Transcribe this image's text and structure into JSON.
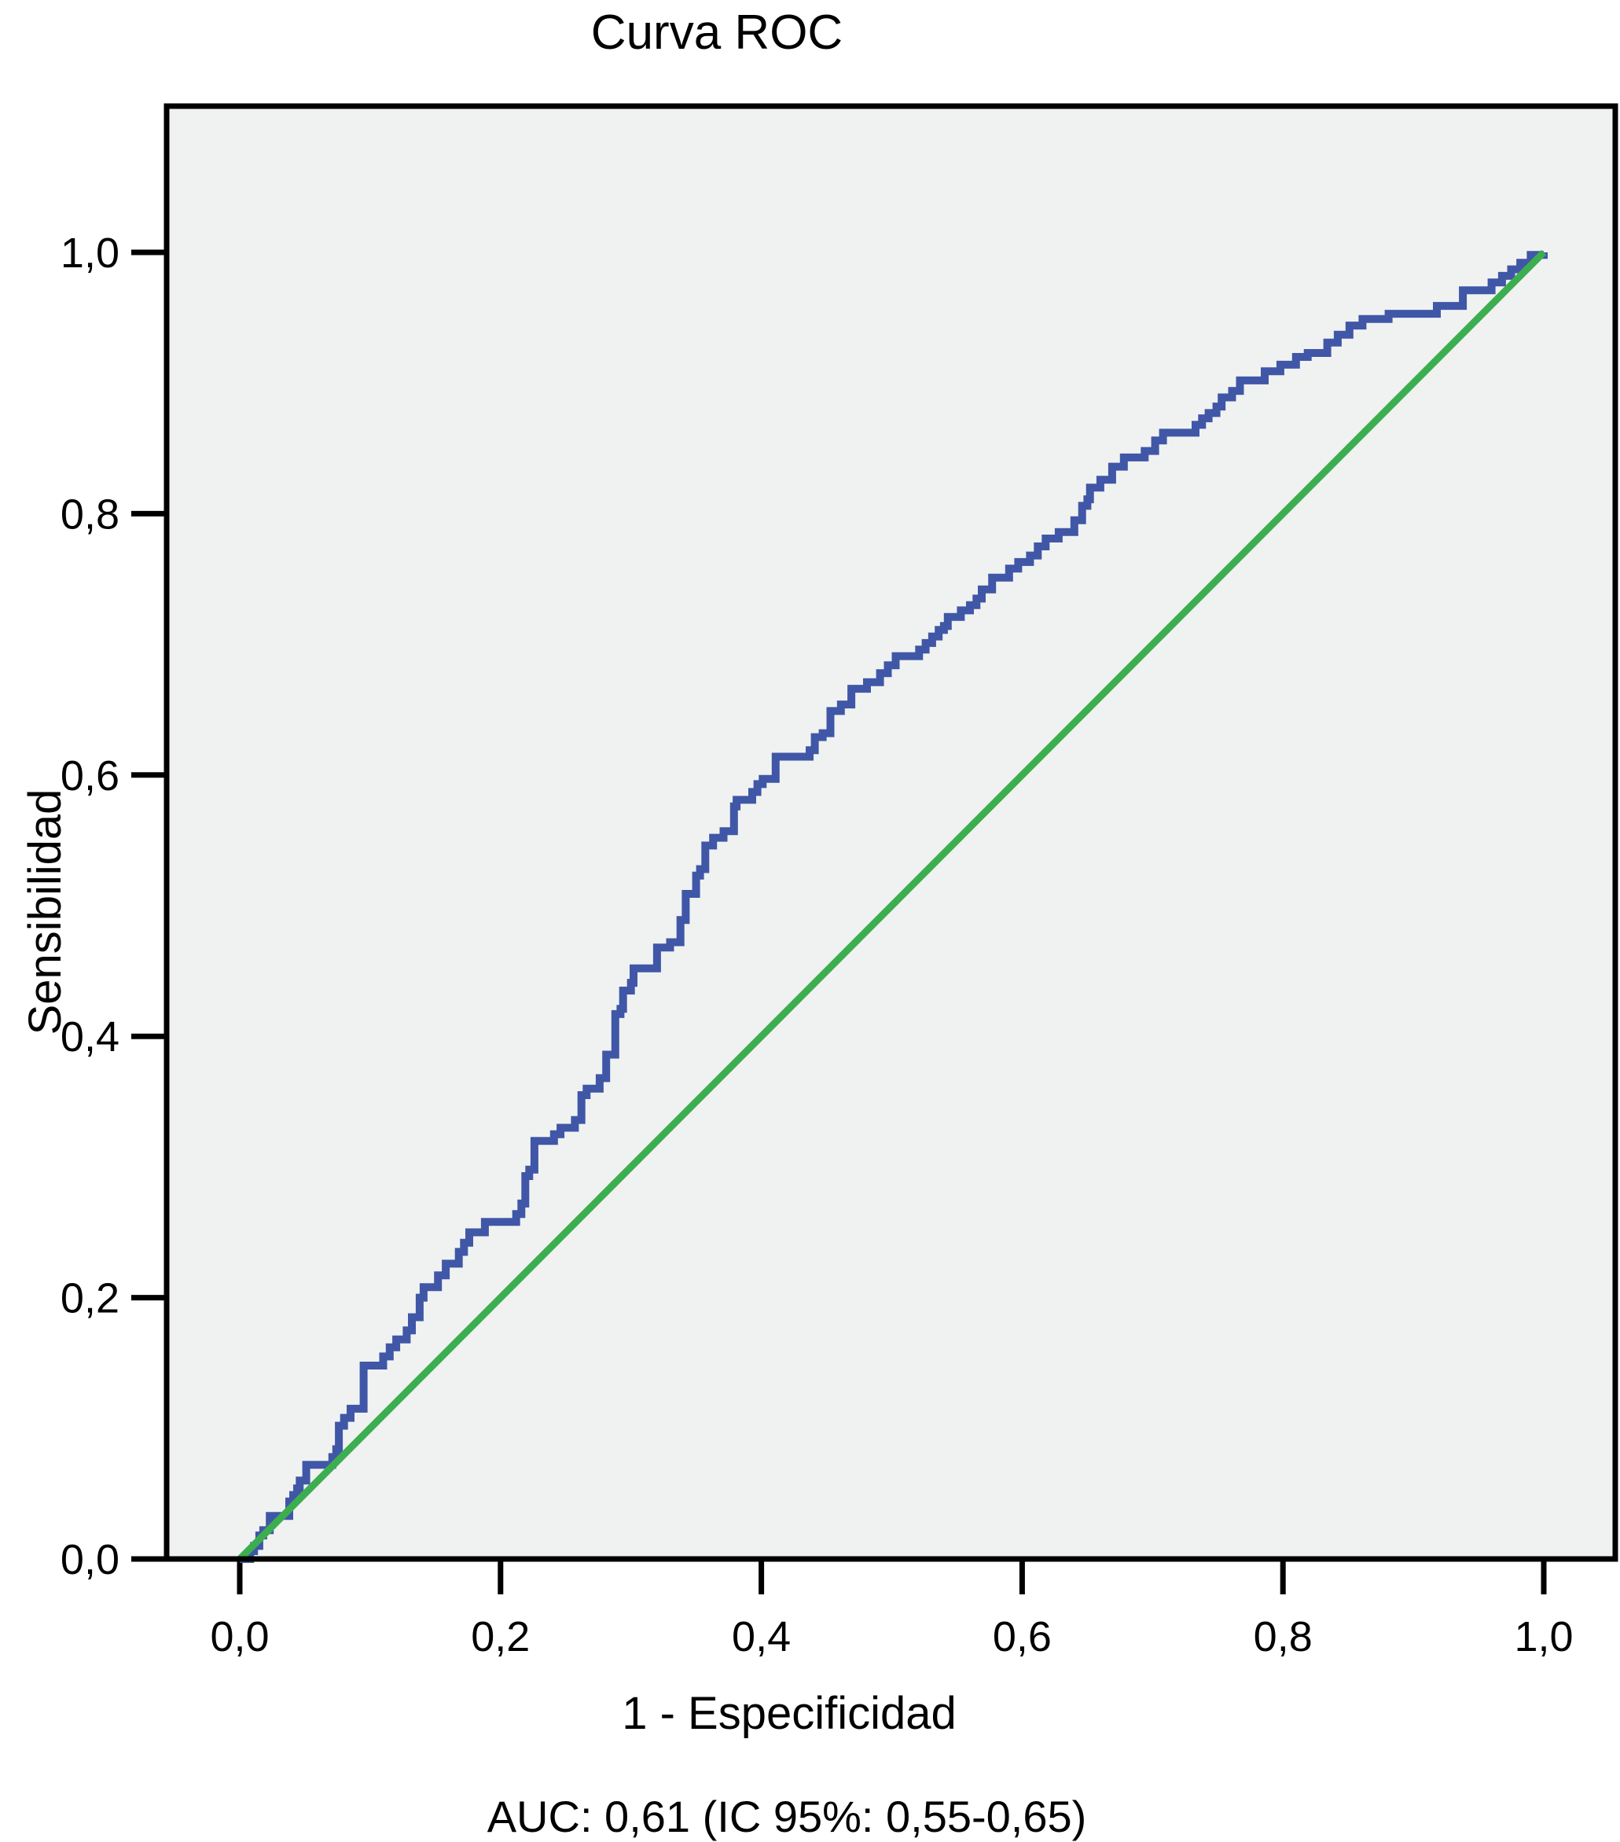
{
  "chart": {
    "title": "Curva ROC",
    "ylabel": "Sensibilidad",
    "xlabel": "1 - Especificidad",
    "caption": "AUC: 0,61 (IC 95%: 0,55-0,65)"
  },
  "chart_data": {
    "type": "line",
    "subtype": "roc-step-curve",
    "title": "Curva ROC",
    "xlabel": "1 - Especificidad",
    "ylabel": "Sensibilidad",
    "caption": "AUC: 0,61 (IC 95%: 0,55-0,65)",
    "auc": "0,61",
    "ci_95": "0,55-0,65",
    "xlim": [
      0,
      1
    ],
    "ylim": [
      0,
      1
    ],
    "grid": false,
    "legend_position": "none",
    "x_tick_values": [
      0,
      0.2,
      0.4,
      0.6,
      0.8,
      1
    ],
    "x_tick_labels": [
      "0,0",
      "0,2",
      "0,4",
      "0,6",
      "0,8",
      "1,0"
    ],
    "y_tick_values": [
      0,
      0.2,
      0.4,
      0.6,
      0.8,
      1
    ],
    "y_tick_labels": [
      "0,0",
      "0,2",
      "0,4",
      "0,6",
      "0,8",
      "1,0"
    ],
    "colors": {
      "curve": "#4057a7",
      "reference": "#3dae4f",
      "plot_background": "#f0f2f1",
      "frame": "#000000"
    },
    "series": [
      {
        "name": "roc_curve",
        "style": "step",
        "color_key": "curve",
        "points": [
          [
            0.0,
            0.0
          ],
          [
            0.008,
            0.006
          ],
          [
            0.011,
            0.01
          ],
          [
            0.015,
            0.018
          ],
          [
            0.018,
            0.022
          ],
          [
            0.023,
            0.033
          ],
          [
            0.038,
            0.044
          ],
          [
            0.041,
            0.049
          ],
          [
            0.044,
            0.054
          ],
          [
            0.046,
            0.06
          ],
          [
            0.051,
            0.072
          ],
          [
            0.071,
            0.078
          ],
          [
            0.074,
            0.084
          ],
          [
            0.076,
            0.102
          ],
          [
            0.08,
            0.108
          ],
          [
            0.085,
            0.115
          ],
          [
            0.095,
            0.148
          ],
          [
            0.11,
            0.155
          ],
          [
            0.115,
            0.162
          ],
          [
            0.12,
            0.168
          ],
          [
            0.128,
            0.175
          ],
          [
            0.132,
            0.185
          ],
          [
            0.138,
            0.2
          ],
          [
            0.141,
            0.208
          ],
          [
            0.152,
            0.217
          ],
          [
            0.158,
            0.226
          ],
          [
            0.168,
            0.235
          ],
          [
            0.172,
            0.242
          ],
          [
            0.176,
            0.25
          ],
          [
            0.188,
            0.258
          ],
          [
            0.212,
            0.264
          ],
          [
            0.216,
            0.272
          ],
          [
            0.219,
            0.293
          ],
          [
            0.222,
            0.298
          ],
          [
            0.226,
            0.32
          ],
          [
            0.241,
            0.325
          ],
          [
            0.246,
            0.33
          ],
          [
            0.257,
            0.336
          ],
          [
            0.262,
            0.355
          ],
          [
            0.266,
            0.36
          ],
          [
            0.276,
            0.368
          ],
          [
            0.281,
            0.386
          ],
          [
            0.288,
            0.417
          ],
          [
            0.292,
            0.421
          ],
          [
            0.294,
            0.435
          ],
          [
            0.3,
            0.441
          ],
          [
            0.302,
            0.452
          ],
          [
            0.32,
            0.468
          ],
          [
            0.33,
            0.472
          ],
          [
            0.338,
            0.489
          ],
          [
            0.342,
            0.509
          ],
          [
            0.35,
            0.523
          ],
          [
            0.353,
            0.528
          ],
          [
            0.357,
            0.546
          ],
          [
            0.363,
            0.552
          ],
          [
            0.371,
            0.557
          ],
          [
            0.379,
            0.576
          ],
          [
            0.381,
            0.581
          ],
          [
            0.393,
            0.587
          ],
          [
            0.397,
            0.593
          ],
          [
            0.401,
            0.597
          ],
          [
            0.411,
            0.614
          ],
          [
            0.437,
            0.619
          ],
          [
            0.441,
            0.629
          ],
          [
            0.447,
            0.632
          ],
          [
            0.453,
            0.649
          ],
          [
            0.461,
            0.654
          ],
          [
            0.469,
            0.666
          ],
          [
            0.481,
            0.671
          ],
          [
            0.491,
            0.678
          ],
          [
            0.497,
            0.684
          ],
          [
            0.503,
            0.691
          ],
          [
            0.521,
            0.696
          ],
          [
            0.526,
            0.701
          ],
          [
            0.531,
            0.706
          ],
          [
            0.536,
            0.711
          ],
          [
            0.54,
            0.714
          ],
          [
            0.543,
            0.721
          ],
          [
            0.553,
            0.726
          ],
          [
            0.56,
            0.73
          ],
          [
            0.565,
            0.735
          ],
          [
            0.569,
            0.742
          ],
          [
            0.577,
            0.751
          ],
          [
            0.59,
            0.758
          ],
          [
            0.597,
            0.763
          ],
          [
            0.606,
            0.768
          ],
          [
            0.612,
            0.775
          ],
          [
            0.618,
            0.781
          ],
          [
            0.628,
            0.786
          ],
          [
            0.64,
            0.795
          ],
          [
            0.646,
            0.806
          ],
          [
            0.65,
            0.811
          ],
          [
            0.652,
            0.82
          ],
          [
            0.66,
            0.826
          ],
          [
            0.669,
            0.836
          ],
          [
            0.678,
            0.843
          ],
          [
            0.694,
            0.848
          ],
          [
            0.702,
            0.856
          ],
          [
            0.708,
            0.862
          ],
          [
            0.733,
            0.868
          ],
          [
            0.738,
            0.873
          ],
          [
            0.743,
            0.877
          ],
          [
            0.749,
            0.882
          ],
          [
            0.753,
            0.889
          ],
          [
            0.761,
            0.894
          ],
          [
            0.767,
            0.902
          ],
          [
            0.786,
            0.909
          ],
          [
            0.798,
            0.914
          ],
          [
            0.81,
            0.92
          ],
          [
            0.819,
            0.923
          ],
          [
            0.834,
            0.931
          ],
          [
            0.842,
            0.937
          ],
          [
            0.851,
            0.944
          ],
          [
            0.861,
            0.949
          ],
          [
            0.881,
            0.953
          ],
          [
            0.918,
            0.959
          ],
          [
            0.938,
            0.971
          ],
          [
            0.96,
            0.977
          ],
          [
            0.968,
            0.982
          ],
          [
            0.975,
            0.987
          ],
          [
            0.982,
            0.992
          ],
          [
            0.99,
            0.998
          ],
          [
            1.0,
            1.0
          ]
        ]
      },
      {
        "name": "reference_diagonal",
        "style": "straight",
        "color_key": "reference",
        "points": [
          [
            0,
            0
          ],
          [
            1,
            1
          ]
        ]
      }
    ]
  }
}
